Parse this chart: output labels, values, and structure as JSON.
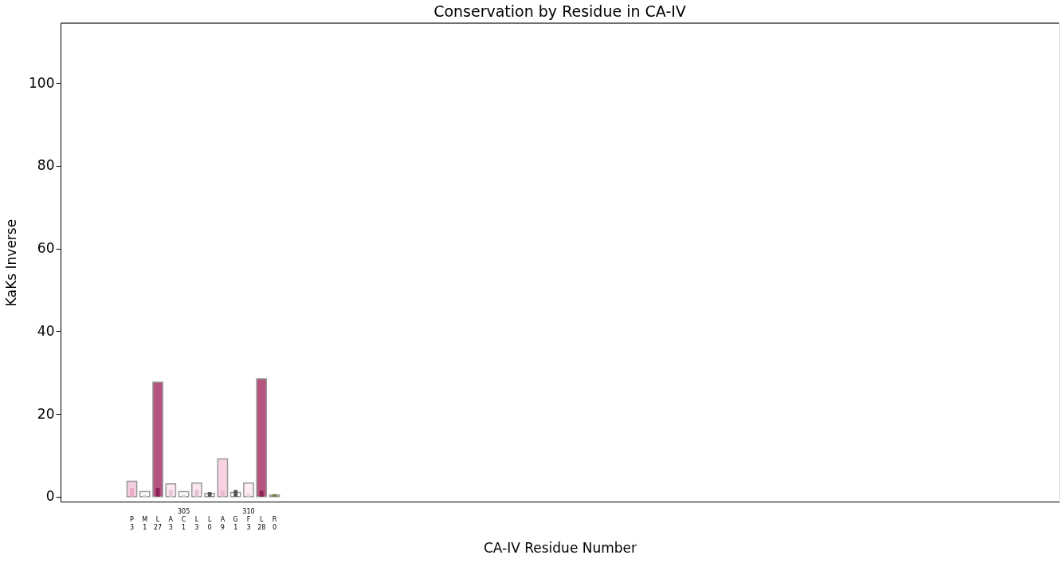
{
  "chart_data": {
    "type": "bar",
    "title": "Conservation by Residue in CA-IV",
    "xlabel": "CA-IV Residue Number",
    "ylabel": "KaKs Inverse",
    "categories": [
      null,
      null,
      null,
      null,
      null,
      "P\n3",
      "M\n1",
      "L\n27",
      "A\n3",
      "305\nC\n1",
      "L\n3",
      "L\n0",
      "A\n9",
      "G\n1",
      "310\nF\n3",
      "L\n28",
      "R\n0",
      null,
      null,
      null,
      null,
      null,
      null,
      null,
      null,
      null,
      null,
      null,
      null,
      null,
      null,
      null,
      null,
      null,
      null,
      null,
      null,
      null,
      null,
      null,
      null,
      null,
      null,
      null,
      null,
      null,
      null,
      null,
      null,
      null,
      null,
      null,
      null,
      null,
      null,
      null,
      null,
      null,
      null,
      null,
      null,
      null,
      null,
      null,
      null,
      null,
      null,
      null,
      null,
      null,
      null,
      null,
      null,
      null,
      null,
      null,
      null
    ],
    "series": [
      {
        "values": [
          null,
          null,
          null,
          null,
          null,
          3.7,
          1.2,
          27.7,
          3.1,
          1.2,
          3.3,
          0.8,
          9.1,
          1.0,
          3.3,
          28.5,
          0.4,
          null,
          null,
          null,
          null,
          null,
          null,
          null,
          null,
          null,
          null,
          null,
          null,
          null,
          null,
          null,
          null,
          null,
          null,
          null,
          null,
          null,
          null,
          null,
          null,
          null,
          null,
          null,
          null,
          null,
          null,
          null,
          null,
          null,
          null,
          null,
          null,
          null,
          null,
          null,
          null,
          null,
          null,
          null,
          null,
          null,
          null,
          null,
          null,
          null,
          null,
          null,
          null,
          null,
          null,
          null,
          null,
          null,
          null,
          null,
          null
        ],
        "colors": [
          null,
          null,
          null,
          null,
          null,
          "#f6cfe0",
          "#ffffff",
          "#b5547f",
          "#fce8f0",
          "#ffffff",
          "#fbe6ef",
          "#ffffff",
          "#f9d2e4",
          "#ffffff",
          "#fdeef4",
          "#b5547f",
          "#c2c98a",
          null,
          null,
          null,
          null,
          null,
          null,
          null,
          null,
          null,
          null,
          null,
          null,
          null,
          null,
          null,
          null,
          null,
          null,
          null,
          null,
          null,
          null,
          null,
          null,
          null,
          null,
          null,
          null,
          null,
          null,
          null,
          null,
          null,
          null,
          null,
          null,
          null,
          null,
          null,
          null,
          null,
          null,
          null,
          null,
          null,
          null,
          null,
          null,
          null,
          null,
          null,
          null,
          null,
          null,
          null,
          null,
          null,
          null,
          null,
          null
        ]
      },
      {
        "values": [
          null,
          null,
          null,
          null,
          null,
          2.1,
          0.6,
          2.1,
          1.7,
          0.6,
          1.7,
          1.1,
          1.5,
          1.6,
          0.8,
          1.4,
          0.6,
          null,
          null,
          null,
          null,
          null,
          null,
          null,
          null,
          null,
          null,
          null,
          null,
          null,
          null,
          null,
          null,
          null,
          null,
          null,
          null,
          null,
          null,
          null,
          null,
          null,
          null,
          null,
          null,
          null,
          null,
          null,
          null,
          null,
          null,
          null,
          null,
          null,
          null,
          null,
          null,
          null,
          null,
          null,
          null,
          null,
          null,
          null,
          null,
          null,
          null,
          null,
          null,
          null,
          null,
          null,
          null,
          null,
          null,
          null,
          null
        ],
        "colors": [
          null,
          null,
          null,
          null,
          null,
          "#e8aac6",
          "#e0e0e0",
          "#8c2255",
          "#eac5d5",
          "#e0e0e0",
          "#e6c3d3",
          "#555555",
          "#eab8cf",
          "#555555",
          "#f3d6e2",
          "#8c2255",
          "#6b7a3a",
          null,
          null,
          null,
          null,
          null,
          null,
          null,
          null,
          null,
          null,
          null,
          null,
          null,
          null,
          null,
          null,
          null,
          null,
          null,
          null,
          null,
          null,
          null,
          null,
          null,
          null,
          null,
          null,
          null,
          null,
          null,
          null,
          null,
          null,
          null,
          null,
          null,
          null,
          null,
          null,
          null,
          null,
          null,
          null,
          null,
          null,
          null,
          null,
          null,
          null,
          null,
          null,
          null,
          null,
          null,
          null,
          null,
          null,
          null,
          null
        ]
      }
    ],
    "ylim": [
      -1.2,
      114.5
    ],
    "yticks": [
      0,
      20,
      40,
      60,
      80,
      100
    ],
    "grid": false
  }
}
